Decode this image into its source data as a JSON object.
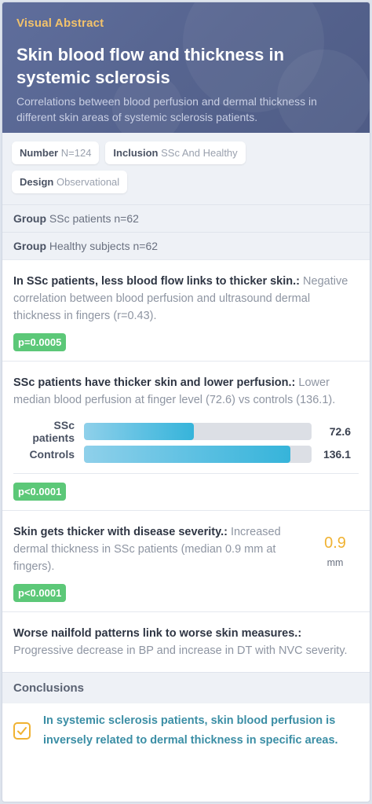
{
  "header": {
    "badge": "Visual Abstract",
    "title": "Skin blood flow and thickness in systemic sclerosis",
    "subtitle": "Correlations between blood perfusion and dermal thickness in different skin areas of systemic sclerosis patients."
  },
  "meta": {
    "number_label": "Number",
    "number_value": "N=124",
    "inclusion_label": "Inclusion",
    "inclusion_value": "SSc And Healthy",
    "design_label": "Design",
    "design_value": "Observational"
  },
  "groups": [
    {
      "label": "Group",
      "value": "SSc patients n=62"
    },
    {
      "label": "Group",
      "value": "Healthy subjects n=62"
    }
  ],
  "findings": {
    "f1": {
      "heading": "In SSc patients, less blood flow links to thicker skin.:",
      "text": " Negative correlation between blood perfusion and ultrasound dermal thickness in fingers (r=0.43).",
      "pvalue": "p=0.0005"
    },
    "f2": {
      "heading": "SSc patients have thicker skin and lower perfusion.:",
      "text": " Lower median blood perfusion at finger level (72.6) vs controls (136.1).",
      "pvalue": "p<0.0001"
    },
    "f3": {
      "heading": "Skin gets thicker with disease severity.:",
      "text": " Increased dermal thickness in SSc patients (median 0.9 mm at fingers).",
      "pvalue": "p<0.0001",
      "stat_value": "0.9",
      "stat_unit": "mm"
    },
    "f4": {
      "heading": "Worse nailfold patterns link to worse skin measures.:",
      "text": " Progressive decrease in BP and increase in DT with NVC severity."
    }
  },
  "chart_data": {
    "type": "bar",
    "categories": [
      "SSc patients",
      "Controls"
    ],
    "values": [
      72.6,
      136.1
    ],
    "value_labels": [
      "72.6",
      "136.1"
    ],
    "xlim": [
      0,
      150
    ]
  },
  "conclusions": {
    "heading": "Conclusions",
    "text": "In systemic sclerosis patients, skin blood perfusion is inversely related to dermal thickness in specific areas."
  },
  "colors": {
    "header_bg": "#56648f",
    "accent_gold": "#f2c26b",
    "pill_green": "#5cc878",
    "bar_blue": "#36b4da",
    "conclusion_teal": "#3b8ea5"
  },
  "icons": {
    "conclusion": "check-square-icon"
  }
}
